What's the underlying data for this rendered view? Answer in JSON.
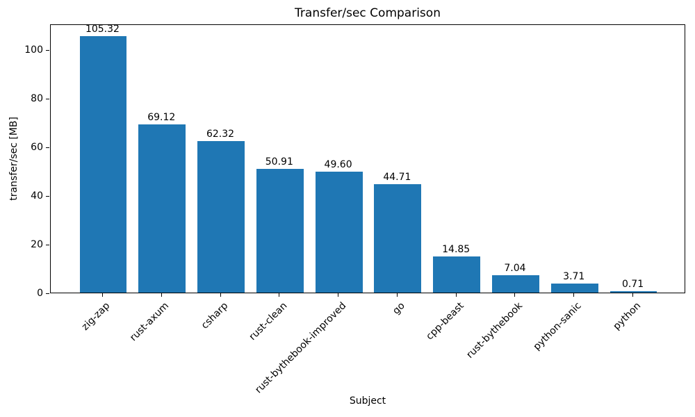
{
  "chart_data": {
    "type": "bar",
    "title": "Transfer/sec Comparison",
    "xlabel": "Subject",
    "ylabel": "transfer/sec [MB]",
    "categories": [
      "zig-zap",
      "rust-axum",
      "csharp",
      "rust-clean",
      "rust-bythebook-improved",
      "go",
      "cpp-beast",
      "rust-bythebook",
      "python-sanic",
      "python"
    ],
    "values": [
      105.32,
      69.12,
      62.32,
      50.91,
      49.6,
      44.71,
      14.85,
      7.04,
      3.71,
      0.71
    ],
    "value_labels": [
      "105.32",
      "69.12",
      "62.32",
      "50.91",
      "49.60",
      "44.71",
      "14.85",
      "7.04",
      "3.71",
      "0.71"
    ],
    "yticks": [
      0,
      20,
      40,
      60,
      80,
      100
    ],
    "ytick_labels": [
      "0",
      "20",
      "40",
      "60",
      "80",
      "100"
    ],
    "ylim": [
      0,
      110.59
    ],
    "xlim": [
      -0.89,
      9.89
    ],
    "bar_width": 0.8,
    "bar_color": "#1f77b4",
    "xtick_rotation_deg": 45,
    "grid": false,
    "legend": null
  }
}
